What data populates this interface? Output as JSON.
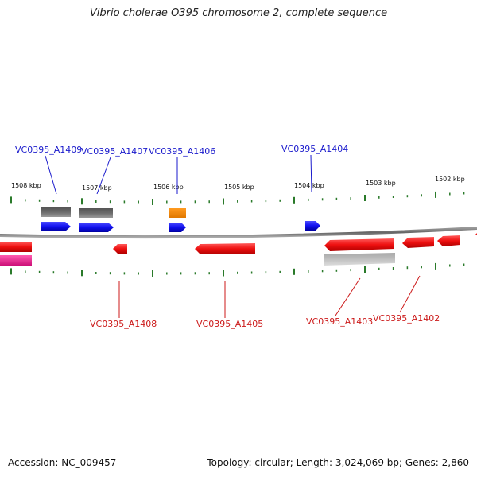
{
  "title": "Vibrio cholerae O395 chromosome 2, complete sequence",
  "accession": "Accession: NC_009457",
  "topology": "Topology: circular; Length: 3,024,069 bp; Genes: 2,860",
  "colors": {
    "label_top": "#1a1acc",
    "label_bottom": "#cc1a1a",
    "tick": "#2a7a2a",
    "backbone": "#777777",
    "gene_blue": "#1010ee",
    "gene_red": "#ee1010",
    "gene_gray": "#666666",
    "gene_lightgray": "#b8b8b8",
    "gene_orange": "#ff8c00",
    "gene_pink": "#ee1a90"
  },
  "scale_labels": [
    "1508 kbp",
    "1507 kbp",
    "1506 kbp",
    "1505 kbp",
    "1504 kbp",
    "1503 kbp",
    "1502 kbp"
  ],
  "top_labels": [
    "VC0395_A1409",
    "VC0395_A1407",
    "VC0395_A1406",
    "VC0395_A1404"
  ],
  "bottom_labels": [
    "VC0395_A1408",
    "VC0395_A1405",
    "VC0395_A1403",
    "VC0395_A1402"
  ]
}
